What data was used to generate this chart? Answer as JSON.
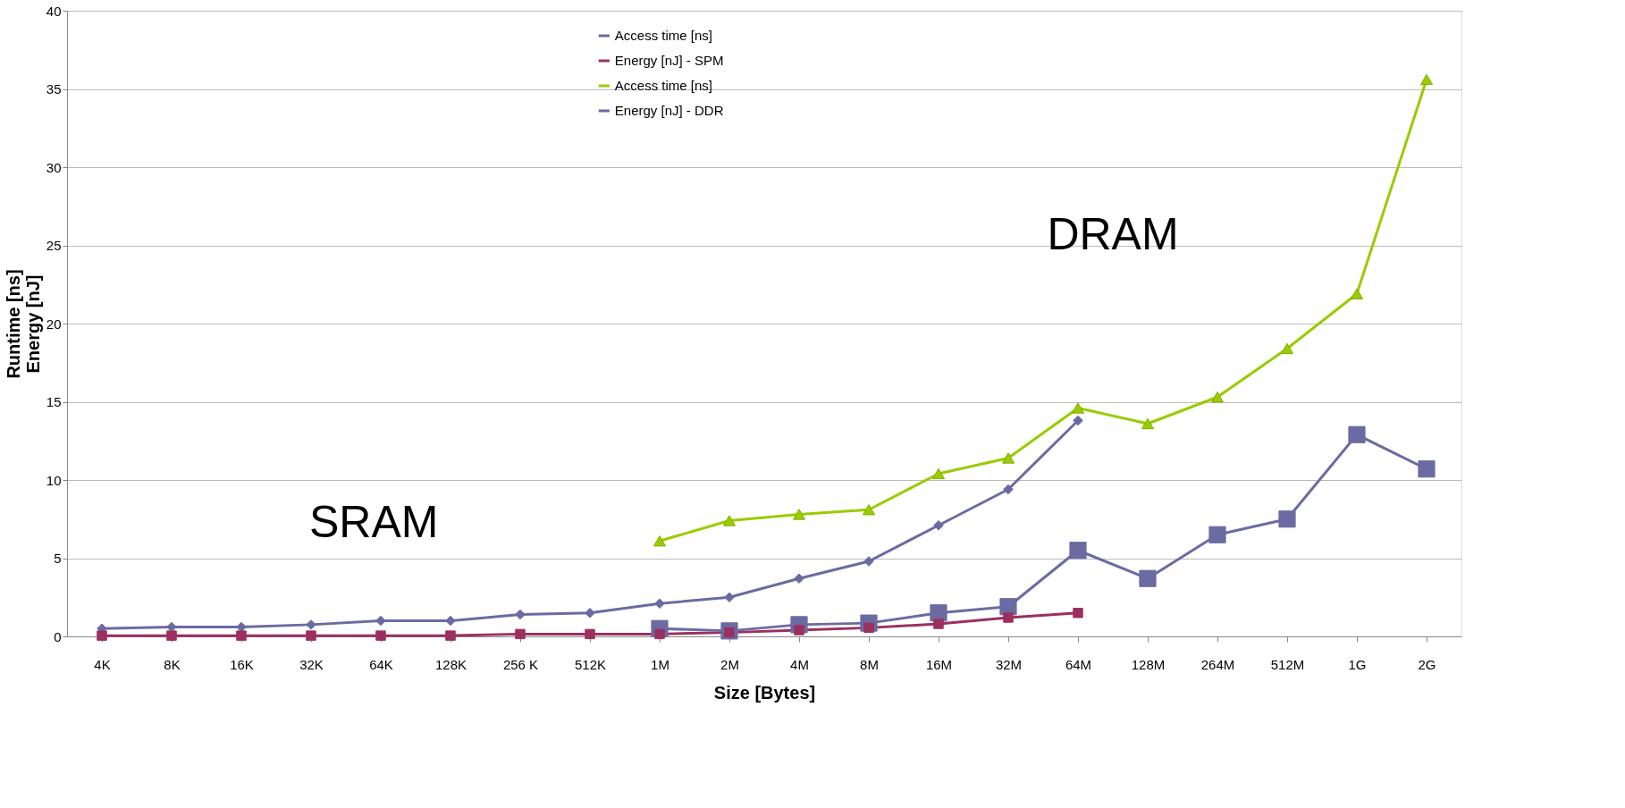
{
  "chart_data": {
    "type": "line",
    "xlabel": "Size [Bytes]",
    "ylabel": "Runtime [ns]\nEnergy [nJ]",
    "categories": [
      "4K",
      "8K",
      "16K",
      "32K",
      "64K",
      "128K",
      "256 K",
      "512K",
      "1M",
      "2M",
      "4M",
      "8M",
      "16M",
      "32M",
      "64M",
      "128M",
      "264M",
      "512M",
      "1G",
      "2G"
    ],
    "series": [
      {
        "name": "Access time [ns]",
        "color": "#6b6ba3",
        "marker": "diamond",
        "values": [
          0.5,
          0.6,
          0.6,
          0.75,
          1.0,
          1.0,
          1.4,
          1.5,
          2.1,
          2.5,
          3.7,
          4.8,
          7.1,
          9.4,
          13.8,
          null,
          null,
          null,
          null,
          null
        ]
      },
      {
        "name": "Energy [nJ] - SPM",
        "color": "#9b3060",
        "marker": "square",
        "values": [
          0.05,
          0.05,
          0.05,
          0.05,
          0.05,
          0.05,
          0.15,
          0.15,
          0.15,
          0.25,
          0.4,
          0.55,
          0.8,
          1.2,
          1.5,
          null,
          null,
          null,
          null,
          null
        ]
      },
      {
        "name": "Access time [ns]",
        "color": "#99cc00",
        "marker": "triangle",
        "values": [
          null,
          null,
          null,
          null,
          null,
          null,
          null,
          null,
          6.1,
          7.4,
          7.8,
          8.1,
          10.4,
          11.4,
          14.6,
          13.6,
          15.3,
          18.4,
          21.9,
          35.6
        ]
      },
      {
        "name": "Energy [nJ] - DDR",
        "color": "#6b6ba3",
        "marker": "square",
        "values": [
          null,
          null,
          null,
          null,
          null,
          null,
          null,
          null,
          0.5,
          0.35,
          0.75,
          0.85,
          1.5,
          1.9,
          5.5,
          3.7,
          6.5,
          7.5,
          12.9,
          10.7
        ]
      }
    ],
    "ylim": [
      0,
      40
    ],
    "yticks": [
      0,
      5,
      10,
      15,
      20,
      25,
      30,
      35,
      40
    ],
    "grid": "y",
    "legend": "top",
    "line_style": "solid",
    "annotations": [
      "SRAM",
      "DRAM"
    ]
  }
}
